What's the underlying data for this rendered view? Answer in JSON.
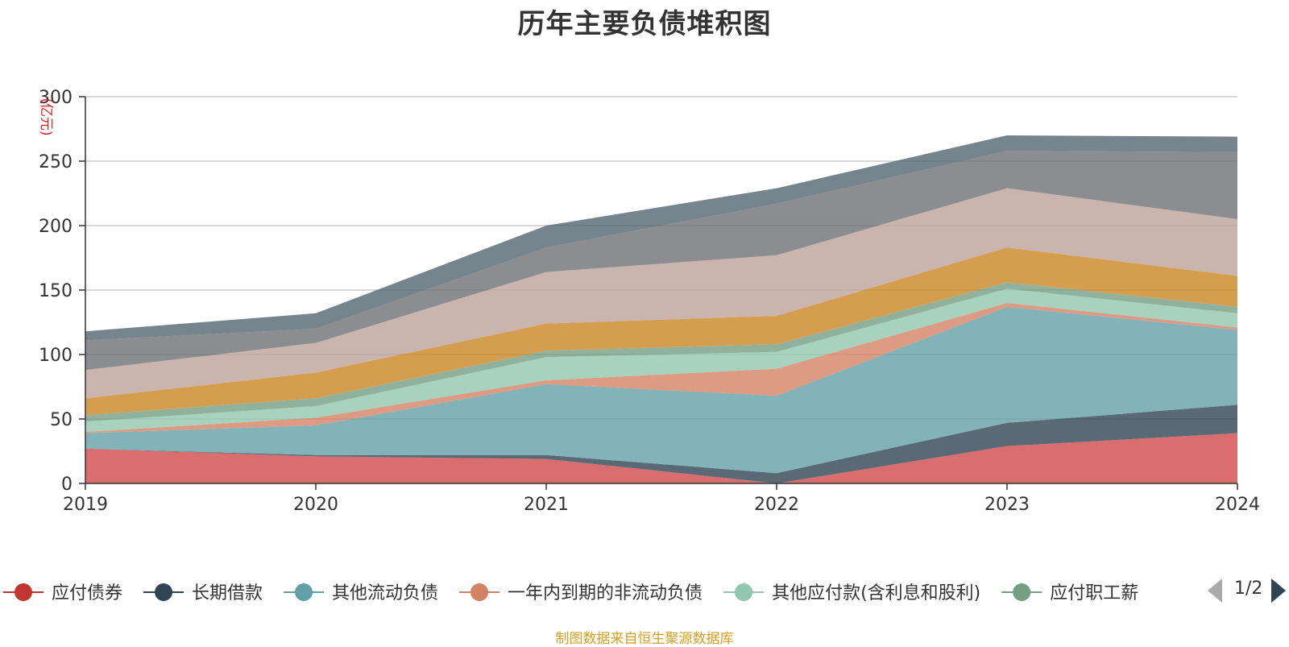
{
  "chart_data": {
    "type": "area",
    "stacked": true,
    "title": "历年主要负债堆积图",
    "unit": "(亿元)",
    "categories": [
      "2019",
      "2020",
      "2021",
      "2022",
      "2023",
      "2024"
    ],
    "ylim": [
      0,
      300
    ],
    "yticks": [
      0,
      50,
      100,
      150,
      200,
      250,
      300
    ],
    "grid": true,
    "legend_position": "bottom",
    "series": [
      {
        "name": "应付债券",
        "color": "#d14a4a",
        "values": [
          27,
          21,
          19,
          0,
          29,
          39
        ]
      },
      {
        "name": "长期借款",
        "color": "#2f4554",
        "values": [
          0,
          1,
          3,
          8,
          18,
          22
        ]
      },
      {
        "name": "其他流动负债",
        "color": "#61a0a8",
        "values": [
          12,
          23,
          55,
          60,
          90,
          58
        ]
      },
      {
        "name": "一年内到期的非流动负债",
        "color": "#d48265",
        "values": [
          1,
          6,
          3,
          21,
          3,
          2
        ]
      },
      {
        "name": "其他应付款(含利息和股利)",
        "color": "#91c7ae",
        "values": [
          8,
          9,
          18,
          13,
          11,
          11
        ]
      },
      {
        "name": "应付职工薪酬",
        "color": "#749f83",
        "values": [
          5,
          6,
          5,
          6,
          5,
          5
        ]
      },
      {
        "name": "",
        "color": "#ca8622",
        "values": [
          13,
          20,
          21,
          22,
          27,
          24
        ]
      },
      {
        "name": "",
        "color": "#bda29a",
        "values": [
          22,
          23,
          40,
          47,
          46,
          44
        ]
      },
      {
        "name": "",
        "color": "#6e7074",
        "values": [
          23,
          11,
          19,
          40,
          29,
          52
        ]
      },
      {
        "name": "",
        "color": "#546570",
        "values": [
          7,
          12,
          17,
          12,
          12,
          12
        ]
      }
    ]
  },
  "legend": {
    "items": [
      {
        "name": "应付债券",
        "color": "#c23531"
      },
      {
        "name": "长期借款",
        "color": "#2f4554"
      },
      {
        "name": "其他流动负债",
        "color": "#61a0a8"
      },
      {
        "name": "一年内到期的非流动负债",
        "color": "#d48265"
      },
      {
        "name": "其他应付款(含利息和股利)",
        "color": "#91c7ae"
      },
      {
        "name": "应付职工薪",
        "color": "#749f83"
      }
    ],
    "page": "1/2"
  },
  "source_note": "制图数据来自恒生聚源数据库"
}
